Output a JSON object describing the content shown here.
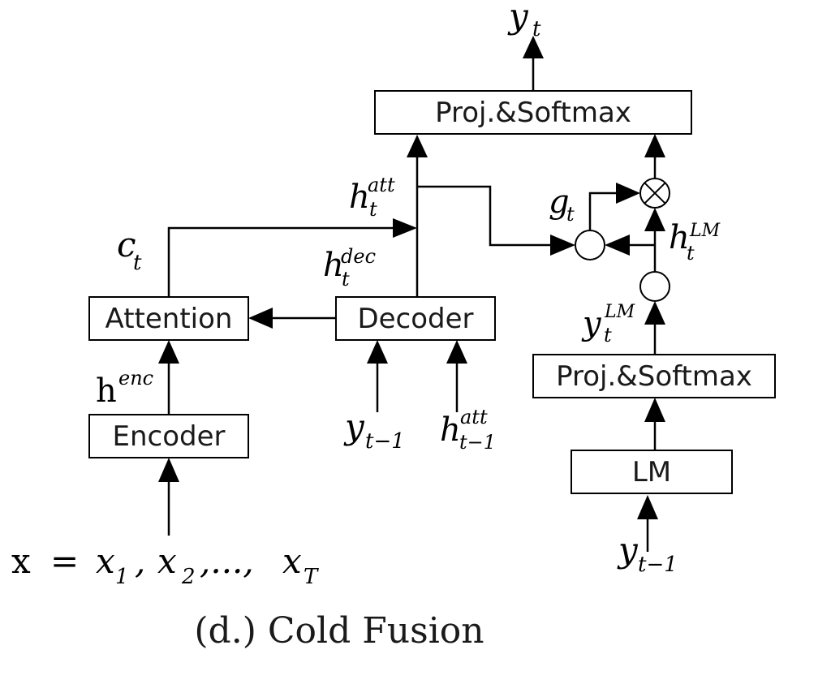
{
  "boxes": {
    "proj_softmax_top": "Proj.&Softmax",
    "attention": "Attention",
    "decoder": "Decoder",
    "encoder": "Encoder",
    "proj_softmax_lm": "Proj.&Softmax",
    "lm": "LM"
  },
  "symbols": {
    "y": "y",
    "t": "t",
    "h": "h",
    "att": "att",
    "dec": "dec",
    "enc": "enc",
    "c": "c",
    "g": "g",
    "LM": "LM",
    "t_minus_1": "t−1",
    "x": "x",
    "equals": "=",
    "x1": "x",
    "sub1": "1",
    "x2": "x",
    "sub2": "2",
    "ellipsis": ",...,",
    "comma": ",",
    "xT": "x",
    "subT": "T",
    "otimes": "⊗"
  },
  "caption": "(d.) Cold Fusion"
}
